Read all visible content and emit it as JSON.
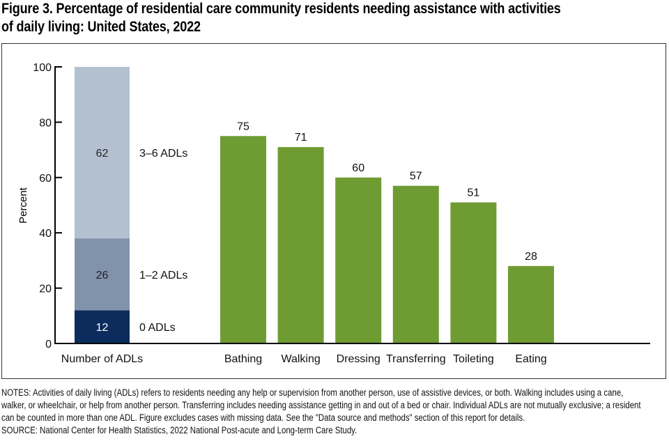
{
  "title": "Figure 3. Percentage of residential care community residents needing assistance with activities of daily living: United States, 2022",
  "title_line1": "Figure 3. Percentage of residential care community residents needing assistance with activities",
  "title_line2": "of daily living: United States, 2022",
  "colors": {
    "adl_0": "#0b2c5c",
    "adl_1_2": "#8192ab",
    "adl_3_6": "#b3c0d0",
    "activity_bar": "#6e9c33",
    "axis": "#000000"
  },
  "chart_data": [
    {
      "type": "bar",
      "stacked": true,
      "category": "Number of ADLs",
      "series": [
        {
          "name": "0 ADLs",
          "value": 12
        },
        {
          "name": "1–2 ADLs",
          "value": 26
        },
        {
          "name": "3–6 ADLs",
          "value": 62
        }
      ],
      "ylabel": "Percent",
      "ylim": [
        0,
        100
      ],
      "yticks": [
        0,
        20,
        40,
        60,
        80,
        100
      ]
    },
    {
      "type": "bar",
      "categories": [
        "Bathing",
        "Walking",
        "Dressing",
        "Transferring",
        "Toileting",
        "Eating"
      ],
      "values": [
        75,
        71,
        60,
        57,
        51,
        28
      ],
      "ylabel": "Percent",
      "ylim": [
        0,
        100
      ]
    }
  ],
  "notes": "NOTES: Activities of daily living (ADLs) refers to residents needing any help or supervision from another person, use of assistive devices, or both. Walking includes using a cane, walker, or wheelchair, or help from another person. Transferring includes needing assistance getting in and out of a bed or chair. Individual ADLs are not mutually exclusive; a resident can be counted in more than one ADL. Figure excludes cases with missing data. See the \"Data source and methods\" section of this report for details.",
  "source": "SOURCE: National Center for Health Statistics, 2022 National Post-acute and Long-term Care Study."
}
